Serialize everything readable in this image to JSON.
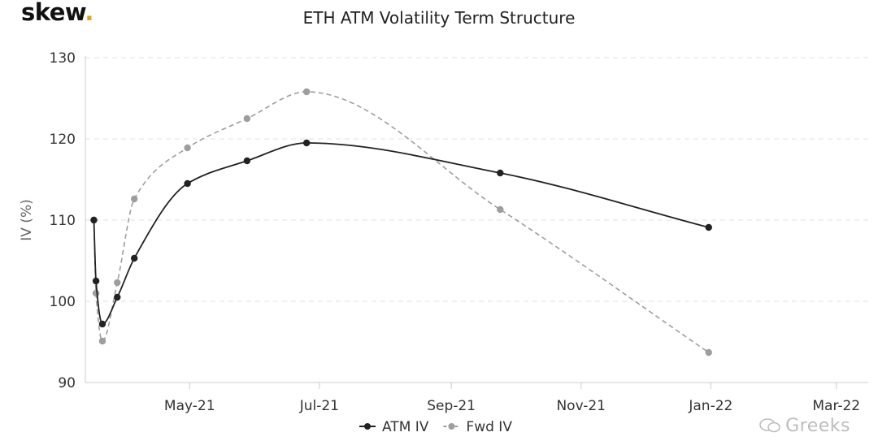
{
  "brand": {
    "name": "skew",
    "dot": "."
  },
  "watermark": {
    "text": "Greeks"
  },
  "colors": {
    "atm": "#222222",
    "fwd": "#9e9e9e",
    "grid": "#e2e2e2",
    "axis": "#cccccc",
    "accent": "#e2a21b"
  },
  "chart_data": {
    "type": "line",
    "title": "ETH ATM Volatility Term Structure",
    "xlabel": "",
    "ylabel": "IV (%)",
    "ylim": [
      90,
      130
    ],
    "yticks": [
      90,
      100,
      110,
      120,
      130
    ],
    "xlim": [
      "2021-03-13",
      "2022-03-16"
    ],
    "xticks": [
      {
        "date": "2021-05-01",
        "label": "May-21"
      },
      {
        "date": "2021-07-01",
        "label": "Jul-21"
      },
      {
        "date": "2021-09-01",
        "label": "Sep-21"
      },
      {
        "date": "2021-11-01",
        "label": "Nov-21"
      },
      {
        "date": "2022-01-01",
        "label": "Jan-22"
      },
      {
        "date": "2022-03-01",
        "label": "Mar-22"
      }
    ],
    "grid": "horizontal",
    "legend": "bottom-center",
    "series": [
      {
        "name": "ATM IV",
        "style": "solid",
        "points": [
          {
            "x": "2021-03-17",
            "y": 110.0
          },
          {
            "x": "2021-03-18",
            "y": 102.5
          },
          {
            "x": "2021-03-21",
            "y": 97.2
          },
          {
            "x": "2021-03-28",
            "y": 100.5
          },
          {
            "x": "2021-04-05",
            "y": 105.3
          },
          {
            "x": "2021-04-30",
            "y": 114.5
          },
          {
            "x": "2021-05-28",
            "y": 117.3
          },
          {
            "x": "2021-06-25",
            "y": 119.5
          },
          {
            "x": "2021-09-24",
            "y": 115.8
          },
          {
            "x": "2021-12-31",
            "y": 109.1
          }
        ]
      },
      {
        "name": "Fwd IV",
        "style": "dashed",
        "points": [
          {
            "x": "2021-03-17",
            "y": 110.0
          },
          {
            "x": "2021-03-18",
            "y": 101.0
          },
          {
            "x": "2021-03-21",
            "y": 95.1
          },
          {
            "x": "2021-03-28",
            "y": 102.3
          },
          {
            "x": "2021-04-05",
            "y": 112.6
          },
          {
            "x": "2021-04-30",
            "y": 118.9
          },
          {
            "x": "2021-05-28",
            "y": 122.5
          },
          {
            "x": "2021-06-25",
            "y": 125.8
          },
          {
            "x": "2021-09-24",
            "y": 111.3
          },
          {
            "x": "2021-12-31",
            "y": 93.7
          }
        ]
      }
    ]
  }
}
